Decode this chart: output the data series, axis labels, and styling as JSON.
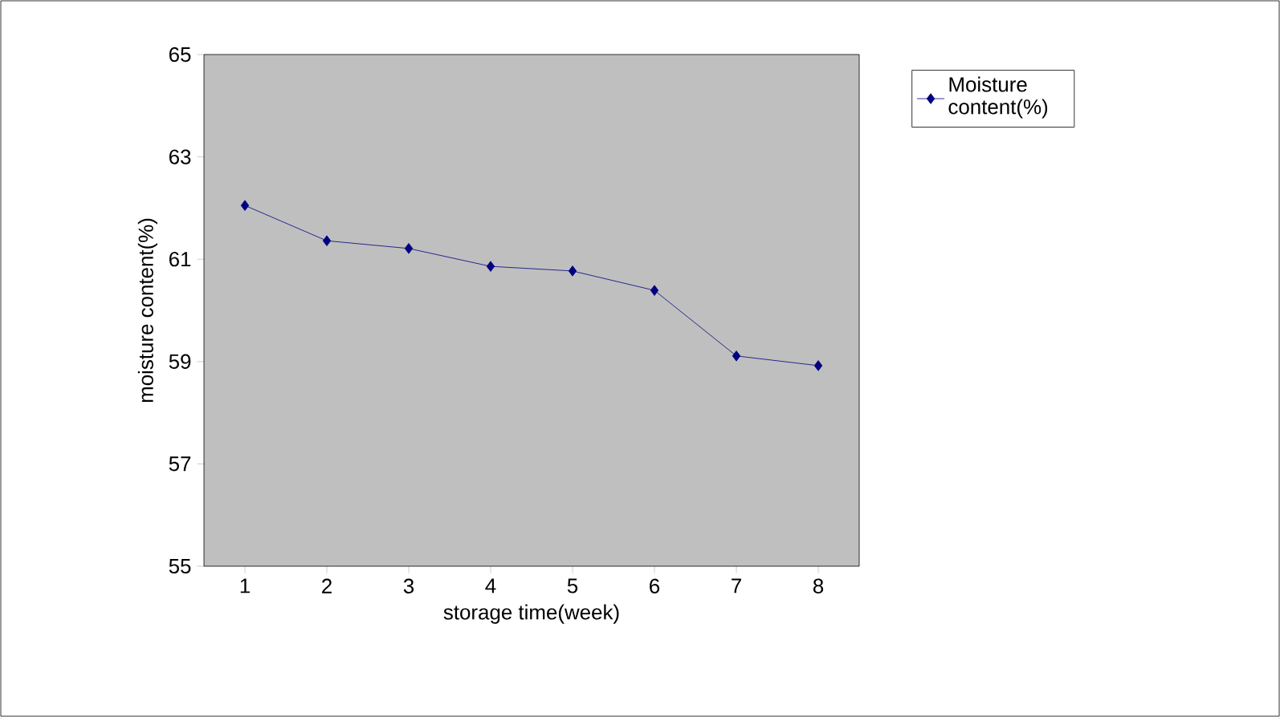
{
  "chart_data": {
    "type": "line",
    "xlabel": "storage time(week)",
    "ylabel": "moisture content(%)",
    "categories": [
      "1",
      "2",
      "3",
      "4",
      "5",
      "6",
      "7",
      "8"
    ],
    "series": [
      {
        "name": "Moisture content(%)",
        "color": "#000080",
        "values": [
          62.05,
          61.36,
          61.21,
          60.86,
          60.77,
          60.39,
          59.11,
          58.92
        ]
      }
    ],
    "ylim": [
      55,
      65
    ],
    "yticks": [
      55,
      57,
      59,
      61,
      63,
      65
    ],
    "grid": false,
    "legend": "top right",
    "marker": "diamond",
    "line_style": "solid"
  }
}
